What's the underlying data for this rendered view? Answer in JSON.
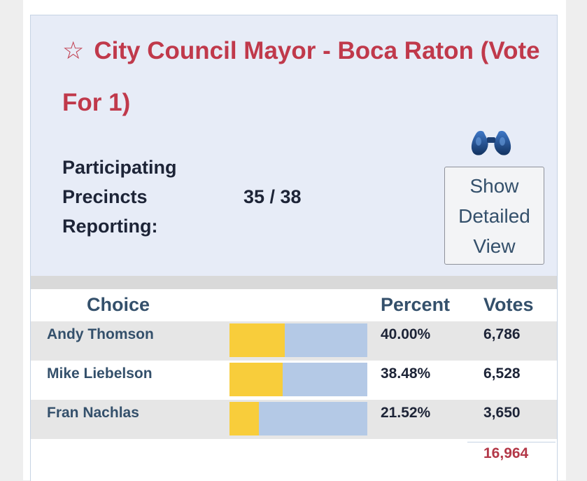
{
  "race": {
    "star_icon": "star-outline-icon",
    "title": "City Council Mayor - Boca Raton (Vote For 1)"
  },
  "precincts": {
    "label": "Participating Precincts Reporting:",
    "value": "35 / 38"
  },
  "detail_button": {
    "icon": "binoculars-icon",
    "label": "Show Detailed View"
  },
  "table": {
    "headers": {
      "choice": "Choice",
      "percent": "Percent",
      "votes": "Votes"
    },
    "rows": [
      {
        "choice": "Andy Thomson",
        "percent": "40.00%",
        "percent_value": 40.0,
        "votes": "6,786"
      },
      {
        "choice": "Mike Liebelson",
        "percent": "38.48%",
        "percent_value": 38.48,
        "votes": "6,528"
      },
      {
        "choice": "Fran Nachlas",
        "percent": "21.52%",
        "percent_value": 21.52,
        "votes": "3,650"
      }
    ],
    "total_votes": "16,964"
  },
  "colors": {
    "title": "#c0394b",
    "bar_fill": "#f8cd3b",
    "bar_track": "#b4c9e6",
    "header_bg": "#e7ecf7"
  }
}
